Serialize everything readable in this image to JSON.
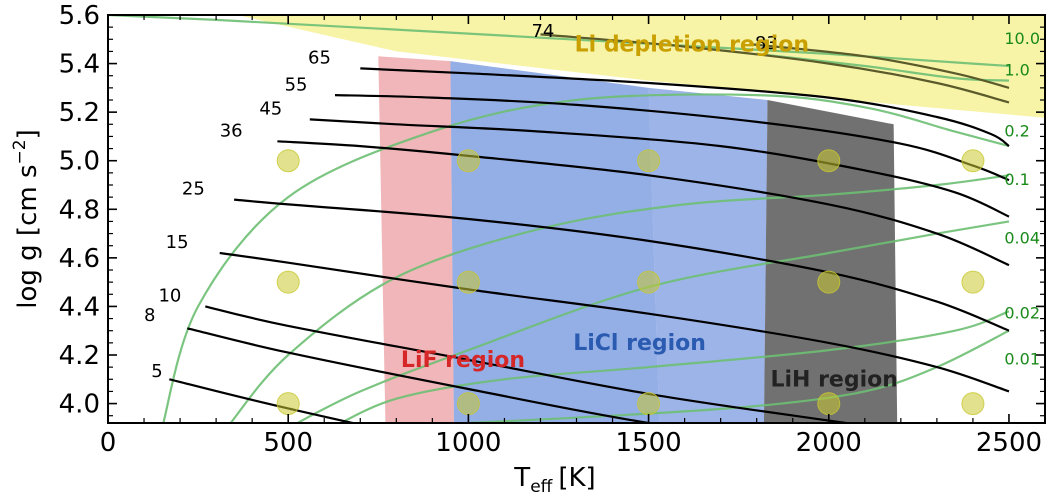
{
  "chart_data": {
    "type": "line",
    "xlabel": "T",
    "xlabel_sub": "eff",
    "xlabel_unit": "[K]",
    "ylabel_main": "log g  [cm s",
    "ylabel_sup": "−2",
    "ylabel_end": "]",
    "xlim": [
      0,
      2600
    ],
    "ylim": [
      3.92,
      5.6
    ],
    "x_ticks": [
      0,
      500,
      1000,
      1500,
      2000,
      2500
    ],
    "x_tick_labels": [
      "0",
      "500",
      "1000",
      "1500",
      "2000",
      "2500"
    ],
    "y_ticks": [
      4.0,
      4.2,
      4.4,
      4.6,
      4.8,
      5.0,
      5.2,
      5.4,
      5.6
    ],
    "y_tick_labels": [
      "4.0",
      "4.2",
      "4.4",
      "4.6",
      "4.8",
      "5.0",
      "5.2",
      "5.4",
      "5.6"
    ],
    "colors": {
      "mass_track": "#000000",
      "li_contour": "#6dbf73",
      "li_label": "#1a8a1a",
      "grid_point": "#c8c832",
      "depletion_fill": "#f7f4a8",
      "depletion_text": "#c9a000",
      "lif_fill": "#e8868a",
      "licl_fill": "#5b82d8",
      "lih_fill": "#3a3a3a",
      "lif_text": "#d62728",
      "licl_text": "#2a5bb0",
      "lih_text": "#222222"
    },
    "regions": [
      {
        "key": "lif",
        "label": "LiF region",
        "polygon": [
          [
            750,
            5.43
          ],
          [
            950,
            5.41
          ],
          [
            960,
            3.9
          ],
          [
            770,
            3.9
          ]
        ]
      },
      {
        "key": "licl",
        "label": "LiCl region",
        "polygon": [
          [
            950,
            5.41
          ],
          [
            1500,
            5.3
          ],
          [
            1530,
            3.9
          ],
          [
            960,
            3.9
          ]
        ]
      },
      {
        "key": "licl_ext",
        "label": "",
        "polygon": [
          [
            1500,
            5.3
          ],
          [
            1830,
            5.25
          ],
          [
            1820,
            3.9
          ],
          [
            1530,
            3.9
          ]
        ]
      },
      {
        "key": "lih",
        "label": "LiH region",
        "polygon": [
          [
            1830,
            5.25
          ],
          [
            2180,
            5.15
          ],
          [
            2190,
            3.9
          ],
          [
            1820,
            3.9
          ]
        ]
      }
    ],
    "region_label_pos": {
      "lif": [
        985,
        4.15
      ],
      "licl": [
        1475,
        4.22
      ],
      "lih": [
        2015,
        4.07
      ]
    },
    "depletion_label": "Li depletion region",
    "mass_tracks": [
      {
        "label": "5",
        "x": [
          170,
          500,
          1000,
          1500,
          2000,
          2450
        ],
        "y": [
          4.1,
          3.98,
          3.82,
          3.7,
          3.6,
          3.52
        ]
      },
      {
        "label": "8",
        "x": [
          220,
          500,
          1000,
          1500,
          2000,
          2450
        ],
        "y": [
          4.31,
          4.21,
          4.06,
          3.92,
          3.82,
          3.72
        ]
      },
      {
        "label": "10",
        "x": [
          270,
          500,
          1000,
          1500,
          2000,
          2450
        ],
        "y": [
          4.4,
          4.32,
          4.18,
          4.04,
          3.93,
          3.84
        ]
      },
      {
        "label": "15",
        "x": [
          310,
          500,
          1000,
          1500,
          2000,
          2300,
          2500
        ],
        "y": [
          4.62,
          4.58,
          4.47,
          4.37,
          4.25,
          4.15,
          4.05
        ]
      },
      {
        "label": "25",
        "x": [
          350,
          500,
          1000,
          1500,
          2000,
          2300,
          2500
        ],
        "y": [
          4.84,
          4.82,
          4.76,
          4.67,
          4.54,
          4.42,
          4.3
        ]
      },
      {
        "label": "36",
        "x": [
          470,
          700,
          1000,
          1500,
          2000,
          2300,
          2500
        ],
        "y": [
          5.08,
          5.06,
          5.02,
          4.94,
          4.82,
          4.7,
          4.57
        ]
      },
      {
        "label": "45",
        "x": [
          560,
          800,
          1200,
          1700,
          2100,
          2350,
          2500
        ],
        "y": [
          5.17,
          5.15,
          5.12,
          5.06,
          4.96,
          4.87,
          4.77
        ]
      },
      {
        "label": "55",
        "x": [
          630,
          900,
          1300,
          1800,
          2200,
          2400,
          2500
        ],
        "y": [
          5.27,
          5.26,
          5.23,
          5.16,
          5.07,
          4.98,
          4.92
        ]
      },
      {
        "label": "65",
        "x": [
          700,
          1000,
          1500,
          2000,
          2300,
          2450,
          2500
        ],
        "y": [
          5.38,
          5.36,
          5.32,
          5.26,
          5.18,
          5.11,
          5.06
        ]
      },
      {
        "label": "74",
        "x": [
          1200,
          1600,
          2000,
          2300,
          2500
        ],
        "y": [
          5.52,
          5.47,
          5.4,
          5.32,
          5.24
        ]
      },
      {
        "label": "83",
        "x": [
          1780,
          2100,
          2350,
          2500
        ],
        "y": [
          5.48,
          5.43,
          5.36,
          5.3
        ]
      }
    ],
    "mass_label_pos": {
      "5": [
        120,
        4.11
      ],
      "8": [
        100,
        4.34
      ],
      "10": [
        140,
        4.42
      ],
      "15": [
        160,
        4.64
      ],
      "25": [
        205,
        4.86
      ],
      "36": [
        310,
        5.1
      ],
      "45": [
        420,
        5.19
      ],
      "55": [
        490,
        5.29
      ],
      "65": [
        555,
        5.4
      ],
      "74": [
        1175,
        5.51
      ],
      "83": [
        1795,
        5.46
      ]
    },
    "li_contours": [
      {
        "label": "10.0",
        "x": [
          0,
          300,
          800,
          1400,
          2000,
          2400,
          2500
        ],
        "y": [
          5.6,
          5.58,
          5.54,
          5.49,
          5.44,
          5.4,
          5.39
        ]
      },
      {
        "label": "1.0",
        "x": [
          1800,
          2100,
          2350,
          2500
        ],
        "y": [
          5.44,
          5.39,
          5.34,
          5.33
        ]
      },
      {
        "label": "0.2",
        "x": [
          150,
          250,
          500,
          900,
          1300,
          1800,
          2100,
          2350,
          2500
        ],
        "y": [
          3.9,
          4.4,
          4.85,
          5.12,
          5.25,
          5.27,
          5.22,
          5.12,
          5.06
        ]
      },
      {
        "label": "0.1",
        "x": [
          330,
          500,
          800,
          1200,
          1600,
          2000,
          2300,
          2500
        ],
        "y": [
          3.9,
          4.2,
          4.52,
          4.72,
          4.82,
          4.86,
          4.9,
          4.94
        ]
      },
      {
        "label": "0.04",
        "x": [
          500,
          700,
          1000,
          1500,
          2000,
          2300,
          2500
        ],
        "y": [
          3.9,
          4.05,
          4.22,
          4.48,
          4.62,
          4.7,
          4.75
        ]
      },
      {
        "label": "0.02",
        "x": [
          620,
          800,
          1100,
          1500,
          2000,
          2350,
          2500
        ],
        "y": [
          3.9,
          4.02,
          4.1,
          4.15,
          4.22,
          4.3,
          4.38
        ]
      },
      {
        "label": "0.01",
        "x": [
          1000,
          1400,
          1800,
          2100,
          2300,
          2500
        ],
        "y": [
          3.92,
          3.95,
          3.99,
          4.05,
          4.15,
          4.3
        ]
      }
    ],
    "li_label_pos": {
      "10.0": [
        2565,
        5.48
      ],
      "1.0": [
        2565,
        5.35
      ],
      "0.2": [
        2565,
        5.1
      ],
      "0.1": [
        2565,
        4.9
      ],
      "0.04": [
        2565,
        4.66
      ],
      "0.02": [
        2565,
        4.35
      ],
      "0.01": [
        2565,
        4.16
      ]
    },
    "grid_points": [
      [
        500,
        5.0
      ],
      [
        1000,
        5.0
      ],
      [
        1500,
        5.0
      ],
      [
        2000,
        5.0
      ],
      [
        2400,
        5.0
      ],
      [
        500,
        4.5
      ],
      [
        1000,
        4.5
      ],
      [
        1500,
        4.5
      ],
      [
        2000,
        4.5
      ],
      [
        2400,
        4.5
      ],
      [
        500,
        4.0
      ],
      [
        1000,
        4.0
      ],
      [
        1500,
        4.0
      ],
      [
        2000,
        4.0
      ],
      [
        2400,
        4.0
      ]
    ]
  }
}
